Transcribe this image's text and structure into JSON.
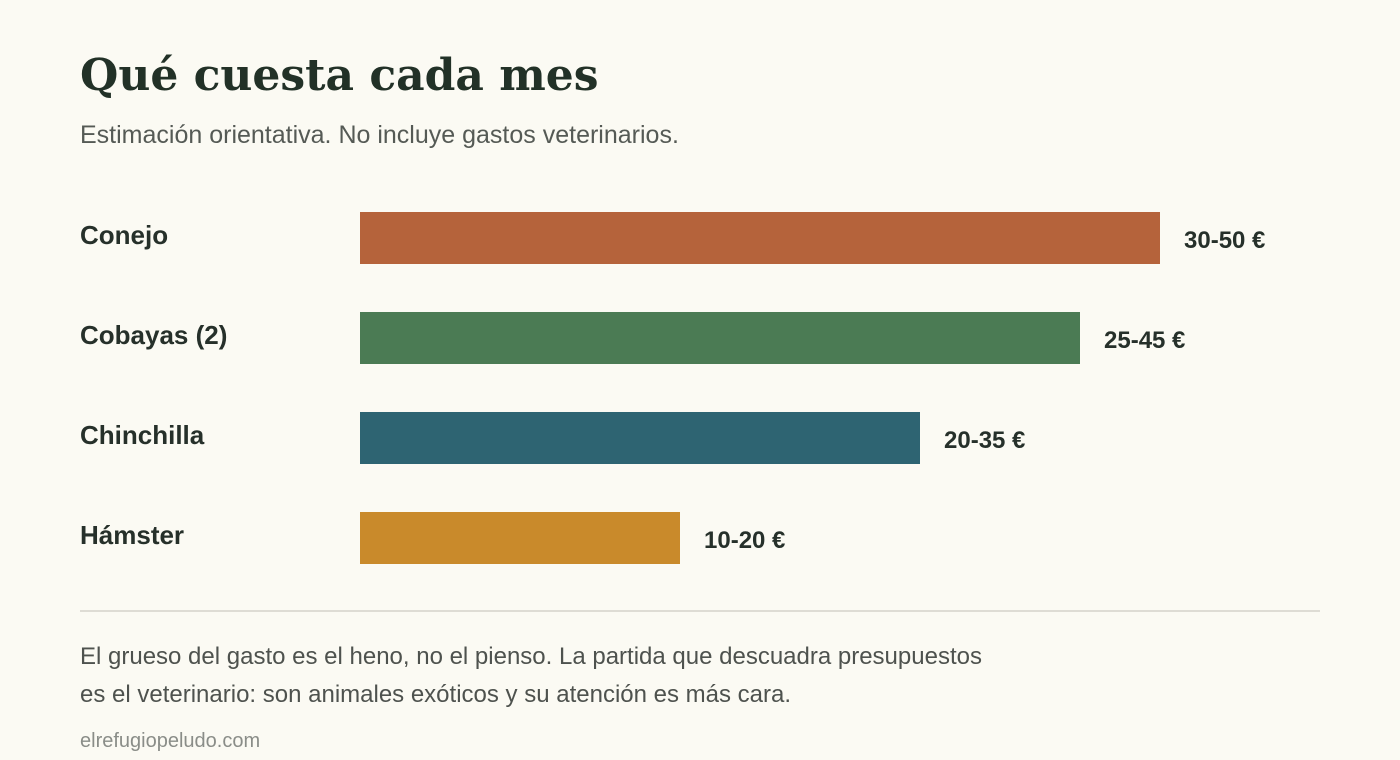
{
  "header": {
    "title": "Qué cuesta cada mes",
    "subtitle": "Estimación orientativa. No incluye gastos veterinarios."
  },
  "chart_data": {
    "type": "bar",
    "orientation": "horizontal",
    "unit": "€",
    "grid": false,
    "categories": [
      "Conejo",
      "Cobayas (2)",
      "Chinchilla",
      "Hámster"
    ],
    "series": [
      {
        "ranges": [
          [
            30,
            50
          ],
          [
            25,
            45
          ],
          [
            20,
            35
          ],
          [
            10,
            20
          ]
        ],
        "values": [
          50,
          45,
          35,
          20
        ],
        "labels": [
          "30-50 €",
          "25-45 €",
          "20-35 €",
          "10-20 €"
        ],
        "colors": [
          "#b5633b",
          "#4b7b54",
          "#2e6472",
          "#c98a2b"
        ]
      }
    ],
    "xlim": [
      0,
      50
    ]
  },
  "footer": {
    "note_lines": [
      "El grueso del gasto es el heno, no el pienso. La partida que descuadra presupuestos",
      "es el veterinario: son animales exóticos y su atención es más cara."
    ],
    "source": "elrefugiopeludo.com"
  }
}
